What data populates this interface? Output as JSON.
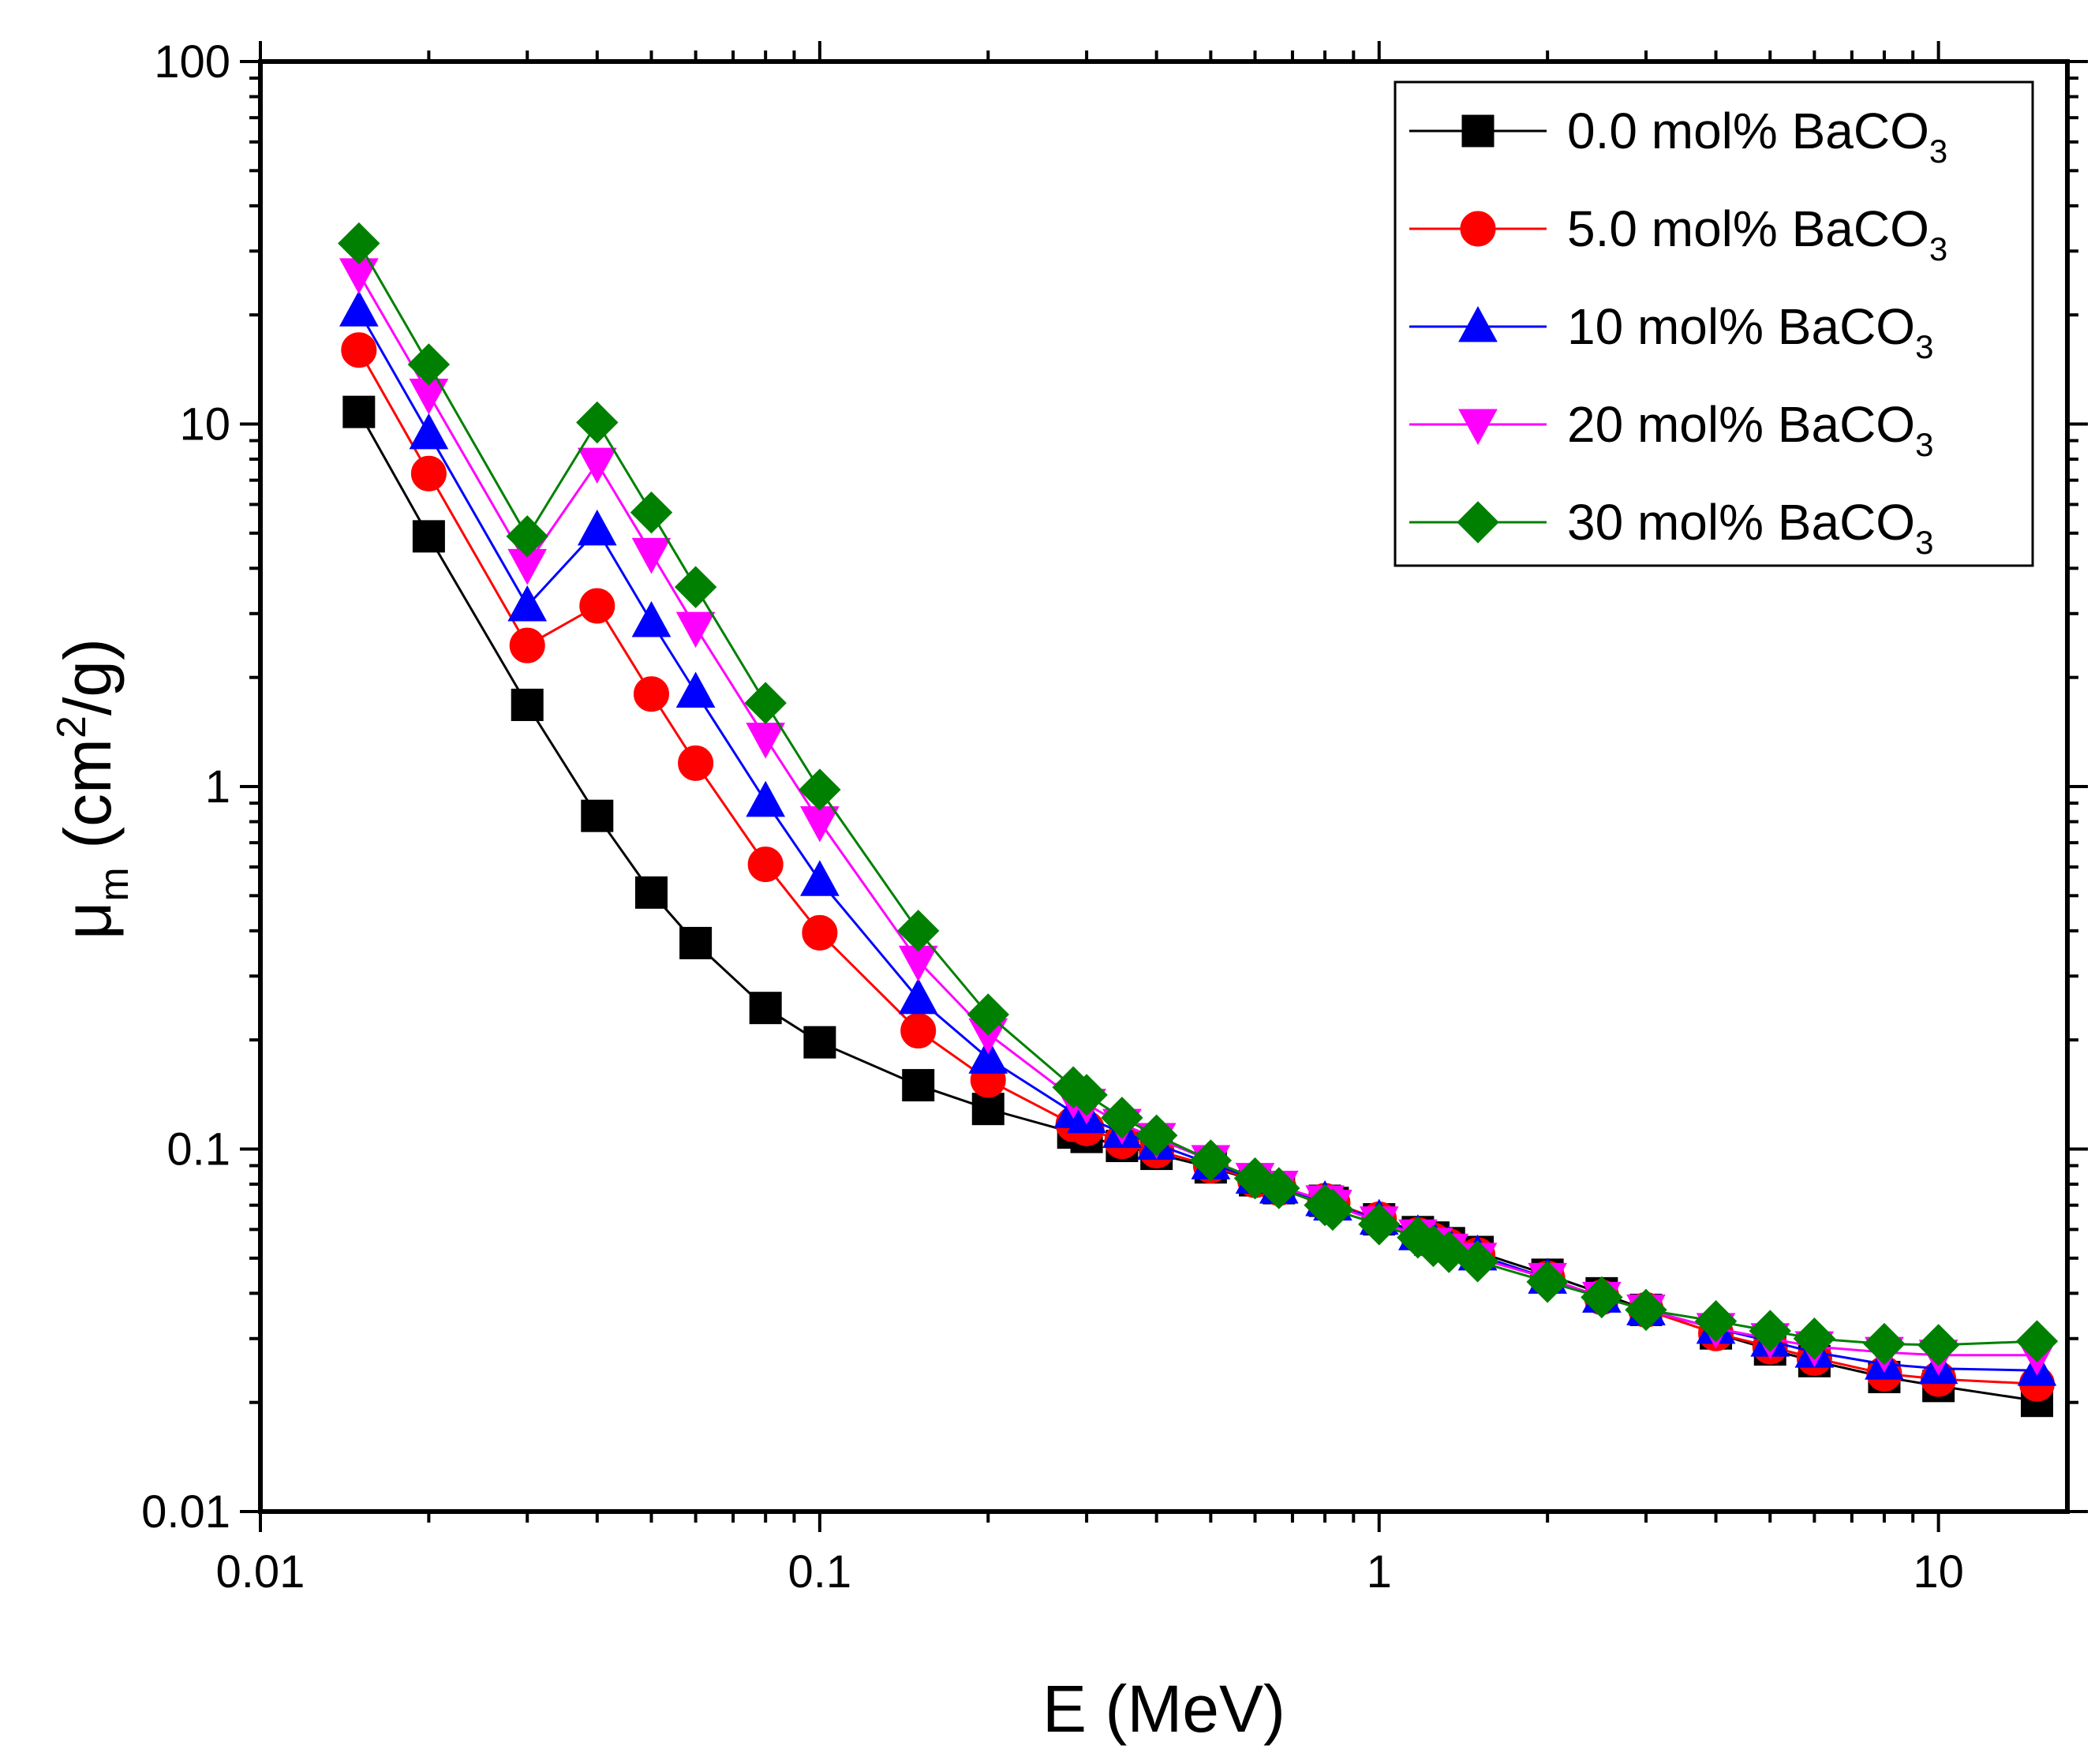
{
  "chart_data": {
    "type": "line",
    "x_scale": "log",
    "y_scale": "log",
    "xlabel": "E (MeV)",
    "ylabel_main": "μ",
    "ylabel_sub": "m",
    "ylabel_unit_open": " (cm",
    "ylabel_unit_sup": "2",
    "ylabel_unit_close": "/g)",
    "xlim": [
      0.01,
      17
    ],
    "ylim": [
      0.01,
      100
    ],
    "x_ticks": [
      {
        "value": 0.01,
        "label": "0.01"
      },
      {
        "value": 0.1,
        "label": "0.1"
      },
      {
        "value": 1,
        "label": "1"
      },
      {
        "value": 10,
        "label": "10"
      }
    ],
    "y_ticks": [
      {
        "value": 0.01,
        "label": "0.01"
      },
      {
        "value": 0.1,
        "label": "0.1"
      },
      {
        "value": 1,
        "label": "1"
      },
      {
        "value": 10,
        "label": "10"
      },
      {
        "value": 100,
        "label": "100"
      }
    ],
    "legend_position": "top-right",
    "x": [
      0.015,
      0.02,
      0.03,
      0.04,
      0.05,
      0.06,
      0.08,
      0.1,
      0.15,
      0.2,
      0.284,
      0.3,
      0.347,
      0.4,
      0.5,
      0.6,
      0.662,
      0.8,
      0.826,
      1.0,
      1.173,
      1.25,
      1.333,
      1.5,
      2.0,
      2.5,
      3.0,
      4.0,
      5.0,
      6.0,
      8.0,
      10.0,
      15.0
    ],
    "series": [
      {
        "name": "0.0 mol% BaCO",
        "subscript": "3",
        "color": "#000000",
        "marker": "square",
        "values": [
          10.8,
          4.9,
          1.68,
          0.83,
          0.51,
          0.37,
          0.245,
          0.197,
          0.15,
          0.129,
          0.111,
          0.108,
          0.102,
          0.097,
          0.089,
          0.082,
          0.078,
          0.072,
          0.071,
          0.064,
          0.059,
          0.057,
          0.055,
          0.052,
          0.045,
          0.04,
          0.036,
          0.031,
          0.028,
          0.026,
          0.0235,
          0.0222,
          0.0202
        ]
      },
      {
        "name": "5.0 mol% BaCO",
        "subscript": "3",
        "color": "#ff0000",
        "marker": "circle",
        "values": [
          16.0,
          7.3,
          2.45,
          3.15,
          1.8,
          1.16,
          0.61,
          0.395,
          0.212,
          0.155,
          0.117,
          0.114,
          0.105,
          0.099,
          0.09,
          0.082,
          0.078,
          0.072,
          0.071,
          0.064,
          0.058,
          0.056,
          0.054,
          0.051,
          0.044,
          0.039,
          0.036,
          0.031,
          0.0285,
          0.0265,
          0.024,
          0.0232,
          0.0225
        ]
      },
      {
        "name": "10 mol% BaCO",
        "subscript": "3",
        "color": "#0000ff",
        "marker": "triangle-up",
        "values": [
          20.5,
          9.4,
          3.15,
          5.1,
          2.85,
          1.82,
          0.91,
          0.55,
          0.26,
          0.178,
          0.126,
          0.122,
          0.111,
          0.103,
          0.091,
          0.083,
          0.078,
          0.072,
          0.07,
          0.064,
          0.058,
          0.056,
          0.054,
          0.051,
          0.044,
          0.039,
          0.036,
          0.032,
          0.0295,
          0.0275,
          0.0255,
          0.0248,
          0.0245
        ]
      },
      {
        "name": "20 mol% BaCO",
        "subscript": "3",
        "color": "#ff00ff",
        "marker": "triangle-down",
        "values": [
          26.0,
          12.1,
          4.1,
          7.8,
          4.4,
          2.75,
          1.36,
          0.8,
          0.33,
          0.208,
          0.138,
          0.133,
          0.117,
          0.107,
          0.093,
          0.083,
          0.079,
          0.072,
          0.07,
          0.063,
          0.058,
          0.055,
          0.053,
          0.05,
          0.044,
          0.039,
          0.036,
          0.032,
          0.03,
          0.0285,
          0.0275,
          0.027,
          0.027
        ]
      },
      {
        "name": "30 mol% BaCO",
        "subscript": "3",
        "color": "#008000",
        "marker": "diamond",
        "values": [
          31.5,
          14.6,
          4.9,
          10.1,
          5.7,
          3.55,
          1.7,
          0.98,
          0.4,
          0.235,
          0.148,
          0.141,
          0.122,
          0.109,
          0.093,
          0.083,
          0.078,
          0.07,
          0.068,
          0.062,
          0.057,
          0.054,
          0.052,
          0.049,
          0.043,
          0.039,
          0.036,
          0.0335,
          0.0315,
          0.03,
          0.029,
          0.0288,
          0.0295
        ]
      }
    ]
  }
}
